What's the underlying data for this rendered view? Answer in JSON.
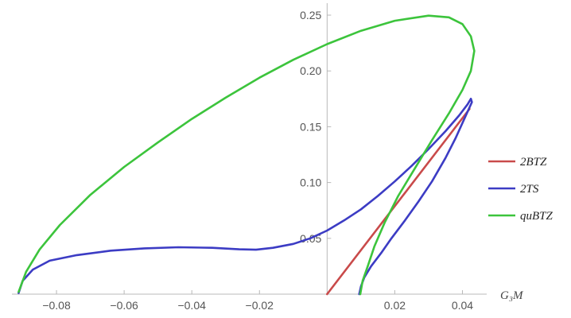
{
  "chart_data": {
    "type": "line",
    "title": "",
    "xlabel": "G₃M",
    "ylabel": "",
    "xlim": [
      -0.092,
      0.046
    ],
    "ylim": [
      0,
      0.26
    ],
    "x_ticks": [
      -0.08,
      -0.06,
      -0.04,
      -0.02,
      0.02,
      0.04
    ],
    "y_ticks": [
      0.05,
      0.1,
      0.15,
      0.2,
      0.25
    ],
    "x_tick_labels": [
      "−0.08",
      "−0.06",
      "−0.04",
      "−0.02",
      "0.02",
      "0.04"
    ],
    "y_tick_labels": [
      "0.05",
      "0.10",
      "0.15",
      "0.20",
      "0.25"
    ],
    "grid": false,
    "legend_position": "right",
    "series": [
      {
        "name": "2BTZ",
        "color": "#c94a4a",
        "points": [
          [
            0.0,
            0.0
          ],
          [
            0.0421,
            0.166
          ]
        ]
      },
      {
        "name": "2TS",
        "color": "#3c3cc4",
        "points": [
          [
            -0.0912,
            0.001
          ],
          [
            -0.09,
            0.012
          ],
          [
            -0.087,
            0.022
          ],
          [
            -0.082,
            0.03
          ],
          [
            -0.074,
            0.035
          ],
          [
            -0.064,
            0.039
          ],
          [
            -0.054,
            0.041
          ],
          [
            -0.044,
            0.042
          ],
          [
            -0.034,
            0.0415
          ],
          [
            -0.026,
            0.0402
          ],
          [
            -0.021,
            0.0398
          ],
          [
            -0.016,
            0.0415
          ],
          [
            -0.01,
            0.045
          ],
          [
            -0.005,
            0.05
          ],
          [
            0.0,
            0.057
          ],
          [
            0.005,
            0.066
          ],
          [
            0.01,
            0.076
          ],
          [
            0.015,
            0.088
          ],
          [
            0.02,
            0.101
          ],
          [
            0.025,
            0.115
          ],
          [
            0.03,
            0.13
          ],
          [
            0.035,
            0.146
          ],
          [
            0.039,
            0.16
          ],
          [
            0.0415,
            0.17
          ],
          [
            0.0425,
            0.175
          ],
          [
            0.0428,
            0.172
          ],
          [
            0.041,
            0.16
          ],
          [
            0.038,
            0.14
          ],
          [
            0.035,
            0.122
          ],
          [
            0.031,
            0.101
          ],
          [
            0.027,
            0.083
          ],
          [
            0.023,
            0.066
          ],
          [
            0.019,
            0.05
          ],
          [
            0.016,
            0.037
          ],
          [
            0.013,
            0.025
          ],
          [
            0.011,
            0.015
          ],
          [
            0.01,
            0.007
          ],
          [
            0.0095,
            0.0
          ]
        ]
      },
      {
        "name": "quBTZ",
        "color": "#3cc43c",
        "points": [
          [
            -0.0912,
            0.002
          ],
          [
            -0.089,
            0.02
          ],
          [
            -0.085,
            0.04
          ],
          [
            -0.079,
            0.062
          ],
          [
            -0.07,
            0.089
          ],
          [
            -0.06,
            0.114
          ],
          [
            -0.05,
            0.136
          ],
          [
            -0.04,
            0.157
          ],
          [
            -0.03,
            0.176
          ],
          [
            -0.02,
            0.194
          ],
          [
            -0.01,
            0.21
          ],
          [
            0.0,
            0.224
          ],
          [
            0.01,
            0.236
          ],
          [
            0.02,
            0.245
          ],
          [
            0.03,
            0.2495
          ],
          [
            0.036,
            0.248
          ],
          [
            0.04,
            0.242
          ],
          [
            0.0425,
            0.231
          ],
          [
            0.0435,
            0.218
          ],
          [
            0.0425,
            0.2
          ],
          [
            0.04,
            0.183
          ],
          [
            0.036,
            0.162
          ],
          [
            0.031,
            0.138
          ],
          [
            0.026,
            0.113
          ],
          [
            0.021,
            0.088
          ],
          [
            0.017,
            0.064
          ],
          [
            0.014,
            0.043
          ],
          [
            0.012,
            0.025
          ],
          [
            0.0105,
            0.012
          ],
          [
            0.0098,
            0.0
          ]
        ]
      }
    ]
  }
}
